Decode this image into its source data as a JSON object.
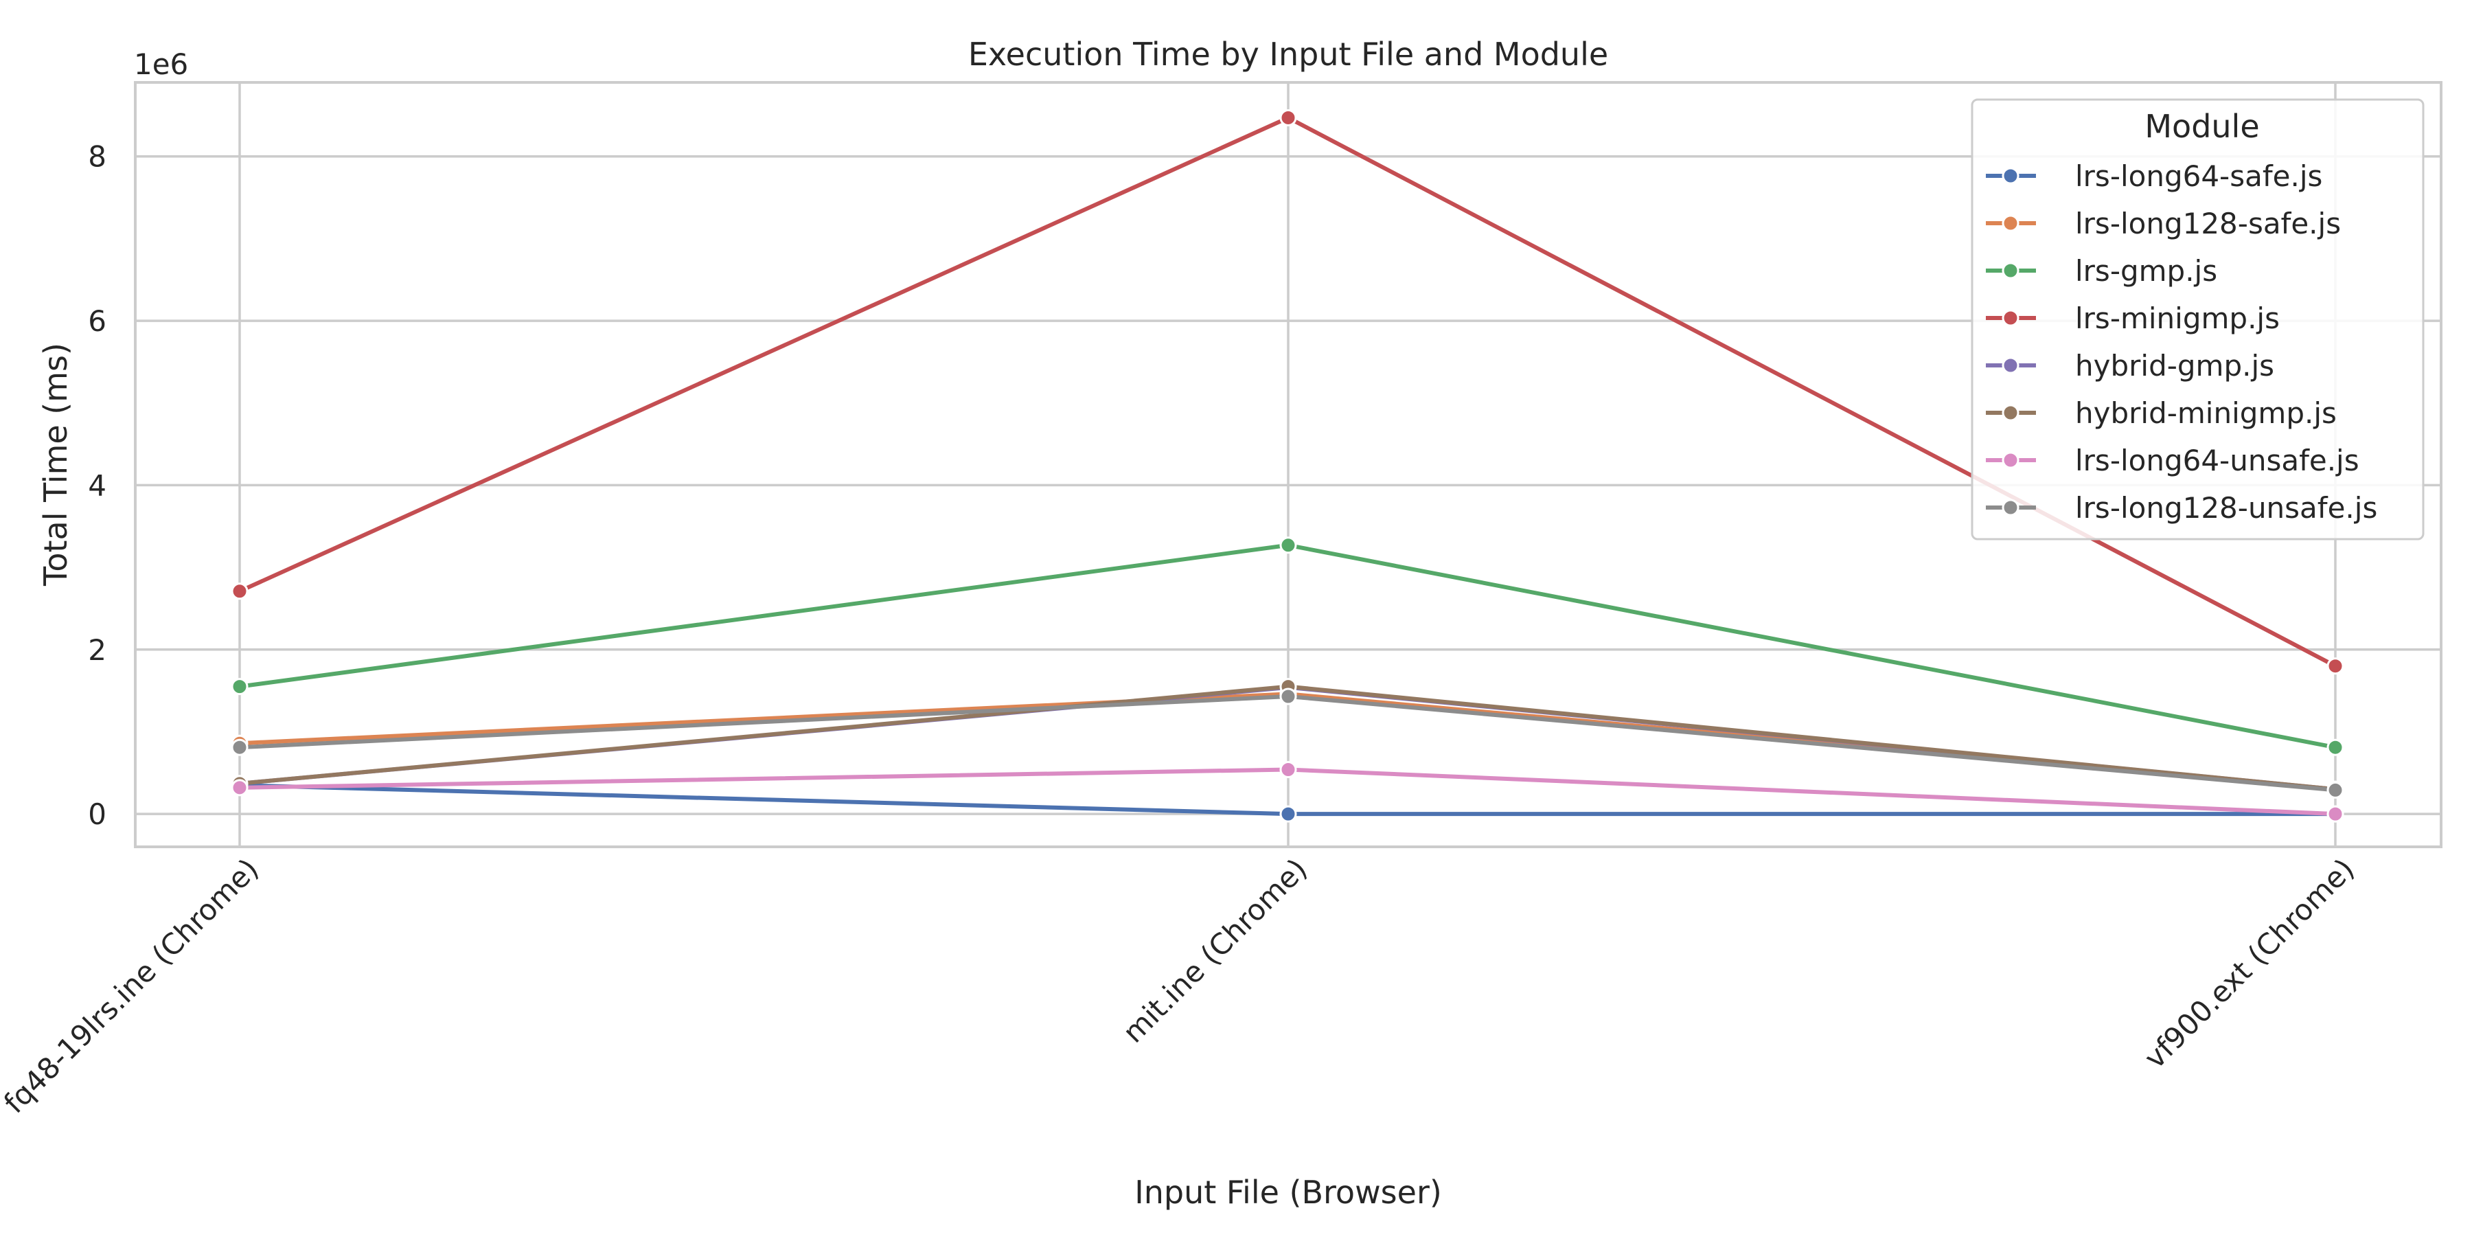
{
  "chart_data": {
    "type": "line",
    "title": "Execution Time by Input File and Module",
    "xlabel": "Input File (Browser)",
    "ylabel": "Total Time (ms)",
    "y_offset_label": "1e6",
    "categories": [
      "fq48-19lrs.ine (Chrome)",
      "mit.ine (Chrome)",
      "vf900.ext (Chrome)"
    ],
    "y_tick_labels": [
      "0",
      "2",
      "4",
      "6",
      "8"
    ],
    "y_ticks": [
      0,
      2000000,
      4000000,
      6000000,
      8000000
    ],
    "ylim": [
      -400000,
      8900000
    ],
    "grid": true,
    "legend_title": "Module",
    "legend_position": "top-right",
    "series": [
      {
        "name": "lrs-long64-safe.js",
        "color": "#4c72b0",
        "values": [
          350000,
          0,
          0
        ]
      },
      {
        "name": "lrs-long128-safe.js",
        "color": "#dd8452",
        "values": [
          860000,
          1460000,
          300000
        ]
      },
      {
        "name": "lrs-gmp.js",
        "color": "#55a868",
        "values": [
          1550000,
          3270000,
          810000
        ]
      },
      {
        "name": "lrs-minigmp.js",
        "color": "#c44e52",
        "values": [
          2710000,
          8470000,
          1800000
        ]
      },
      {
        "name": "hybrid-gmp.js",
        "color": "#8172b3",
        "values": [
          370000,
          1540000,
          300000
        ]
      },
      {
        "name": "hybrid-minigmp.js",
        "color": "#937860",
        "values": [
          370000,
          1550000,
          300000
        ]
      },
      {
        "name": "lrs-long64-unsafe.js",
        "color": "#da8bc3",
        "values": [
          320000,
          540000,
          0
        ]
      },
      {
        "name": "lrs-long128-unsafe.js",
        "color": "#8c8c8c",
        "values": [
          810000,
          1430000,
          290000
        ]
      }
    ]
  }
}
